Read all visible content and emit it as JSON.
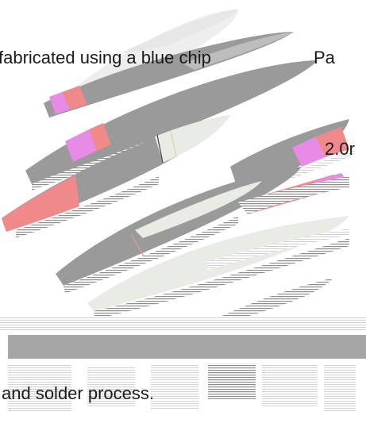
{
  "texts": {
    "line1_left": "fabricated using a blue chip",
    "line1_right": "Pa",
    "line2": "2.0r",
    "line3": "and solder process."
  },
  "colors": {
    "background": "#ffffff",
    "blade_gray": "#9a9a9a",
    "blade_light": "#e9ece4",
    "blade_pale": "#eeeeee",
    "accent_pink": "#f08a8a",
    "accent_magenta": "#e88be6",
    "band_gray": "#a6a6a6",
    "text": "#1a1a1a"
  }
}
